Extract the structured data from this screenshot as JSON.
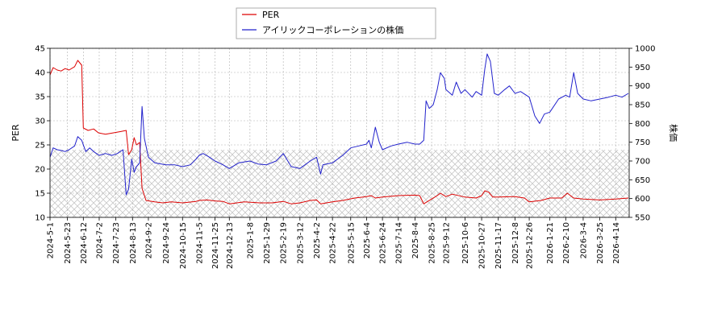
{
  "chart_data": {
    "type": "line",
    "title": "",
    "xlabel": "",
    "ylabel_left": "PER",
    "ylabel_right": "株価",
    "ylim_left": [
      10,
      45
    ],
    "ylim_right": [
      550,
      1000
    ],
    "yticks_left": [
      10,
      15,
      20,
      25,
      30,
      35,
      40,
      45
    ],
    "yticks_right": [
      550,
      600,
      650,
      700,
      750,
      800,
      850,
      900,
      950,
      1000
    ],
    "xlim": [
      "2024-05-01",
      "2026-05-01"
    ],
    "xticks": [
      "2024-5-1",
      "2024-5-23",
      "2024-6-12",
      "2024-7-2",
      "2024-7-23",
      "2024-8-13",
      "2024-9-2",
      "2024-9-24",
      "2024-10-15",
      "2024-11-5",
      "2024-11-25",
      "2024-12-13",
      "2025-1-8",
      "2025-1-29",
      "2025-2-19",
      "2025-3-12",
      "2025-4-2",
      "2025-4-22",
      "2025-5-15",
      "2025-6-4",
      "2025-6-24",
      "2025-7-14",
      "2025-8-4",
      "2025-8-25",
      "2025-9-12",
      "2025-10-6",
      "2025-10-27",
      "2025-11-17",
      "2025-12-8",
      "2025-12-26",
      "2026-1-21",
      "2026-2-10",
      "2026-3-4",
      "2026-3-25",
      "2026-4-14"
    ],
    "grid": true,
    "legend_position": "top-center",
    "hatched_band_left": [
      10,
      24
    ],
    "colors": {
      "per": "#dd0000",
      "price": "#2222cc",
      "grid": "#b0b0b0",
      "hatch": "#c8c8c8"
    },
    "series": [
      {
        "name": "PER",
        "axis": "left",
        "points": [
          [
            "2024-05-01",
            39.5
          ],
          [
            "2024-05-05",
            41.0
          ],
          [
            "2024-05-10",
            40.5
          ],
          [
            "2024-05-15",
            40.3
          ],
          [
            "2024-05-20",
            40.8
          ],
          [
            "2024-05-25",
            40.5
          ],
          [
            "2024-06-01",
            41.2
          ],
          [
            "2024-06-05",
            42.5
          ],
          [
            "2024-06-10",
            41.5
          ],
          [
            "2024-06-12",
            28.5
          ],
          [
            "2024-06-18",
            28.0
          ],
          [
            "2024-06-25",
            28.3
          ],
          [
            "2024-07-01",
            27.5
          ],
          [
            "2024-07-10",
            27.2
          ],
          [
            "2024-07-20",
            27.5
          ],
          [
            "2024-07-30",
            27.8
          ],
          [
            "2024-08-05",
            28.0
          ],
          [
            "2024-08-08",
            23.0
          ],
          [
            "2024-08-12",
            24.0
          ],
          [
            "2024-08-15",
            26.5
          ],
          [
            "2024-08-18",
            25.0
          ],
          [
            "2024-08-22",
            25.5
          ],
          [
            "2024-08-25",
            16.0
          ],
          [
            "2024-08-30",
            13.5
          ],
          [
            "2024-09-10",
            13.2
          ],
          [
            "2024-09-20",
            13.0
          ],
          [
            "2024-10-01",
            13.2
          ],
          [
            "2024-10-15",
            13.0
          ],
          [
            "2024-11-01",
            13.3
          ],
          [
            "2024-11-05",
            13.5
          ],
          [
            "2024-11-15",
            13.6
          ],
          [
            "2024-11-25",
            13.4
          ],
          [
            "2024-12-05",
            13.3
          ],
          [
            "2024-12-13",
            12.8
          ],
          [
            "2025-01-01",
            13.2
          ],
          [
            "2025-01-20",
            13.0
          ],
          [
            "2025-02-05",
            13.0
          ],
          [
            "2025-02-19",
            13.3
          ],
          [
            "2025-03-01",
            12.8
          ],
          [
            "2025-03-12",
            13.0
          ],
          [
            "2025-03-25",
            13.5
          ],
          [
            "2025-04-02",
            13.6
          ],
          [
            "2025-04-07",
            12.8
          ],
          [
            "2025-04-22",
            13.2
          ],
          [
            "2025-05-05",
            13.5
          ],
          [
            "2025-05-20",
            14.0
          ],
          [
            "2025-06-04",
            14.3
          ],
          [
            "2025-06-10",
            14.5
          ],
          [
            "2025-06-15",
            14.0
          ],
          [
            "2025-06-24",
            14.2
          ],
          [
            "2025-07-14",
            14.5
          ],
          [
            "2025-08-04",
            14.6
          ],
          [
            "2025-08-10",
            14.5
          ],
          [
            "2025-08-15",
            12.8
          ],
          [
            "2025-08-25",
            13.8
          ],
          [
            "2025-09-01",
            14.5
          ],
          [
            "2025-09-05",
            15.0
          ],
          [
            "2025-09-12",
            14.3
          ],
          [
            "2025-09-20",
            14.8
          ],
          [
            "2025-10-06",
            14.2
          ],
          [
            "2025-10-20",
            14.0
          ],
          [
            "2025-10-27",
            14.5
          ],
          [
            "2025-10-31",
            15.5
          ],
          [
            "2025-11-05",
            15.2
          ],
          [
            "2025-11-10",
            14.2
          ],
          [
            "2025-11-17",
            14.2
          ],
          [
            "2025-12-08",
            14.3
          ],
          [
            "2025-12-20",
            14.0
          ],
          [
            "2025-12-26",
            13.2
          ],
          [
            "2026-01-10",
            13.5
          ],
          [
            "2026-01-21",
            14.0
          ],
          [
            "2026-02-05",
            14.0
          ],
          [
            "2026-02-12",
            15.0
          ],
          [
            "2026-02-20",
            14.0
          ],
          [
            "2026-03-04",
            13.8
          ],
          [
            "2026-03-25",
            13.6
          ],
          [
            "2026-04-14",
            13.8
          ],
          [
            "2026-04-30",
            14.0
          ]
        ]
      },
      {
        "name": "アイリックコーポレーションの株価",
        "axis": "right",
        "points": [
          [
            "2024-05-01",
            710
          ],
          [
            "2024-05-05",
            735
          ],
          [
            "2024-05-10",
            730
          ],
          [
            "2024-05-15",
            728
          ],
          [
            "2024-05-20",
            725
          ],
          [
            "2024-05-25",
            730
          ],
          [
            "2024-06-01",
            740
          ],
          [
            "2024-06-05",
            765
          ],
          [
            "2024-06-10",
            755
          ],
          [
            "2024-06-15",
            725
          ],
          [
            "2024-06-20",
            735
          ],
          [
            "2024-06-25",
            725
          ],
          [
            "2024-07-02",
            715
          ],
          [
            "2024-07-10",
            720
          ],
          [
            "2024-07-18",
            715
          ],
          [
            "2024-07-25",
            720
          ],
          [
            "2024-08-01",
            730
          ],
          [
            "2024-08-05",
            610
          ],
          [
            "2024-08-08",
            625
          ],
          [
            "2024-08-12",
            705
          ],
          [
            "2024-08-15",
            670
          ],
          [
            "2024-08-18",
            685
          ],
          [
            "2024-08-22",
            695
          ],
          [
            "2024-08-25",
            845
          ],
          [
            "2024-08-28",
            760
          ],
          [
            "2024-09-02",
            710
          ],
          [
            "2024-09-10",
            695
          ],
          [
            "2024-09-24",
            690
          ],
          [
            "2024-10-05",
            690
          ],
          [
            "2024-10-15",
            685
          ],
          [
            "2024-10-25",
            690
          ],
          [
            "2024-11-01",
            705
          ],
          [
            "2024-11-05",
            715
          ],
          [
            "2024-11-10",
            720
          ],
          [
            "2024-11-18",
            710
          ],
          [
            "2024-11-25",
            700
          ],
          [
            "2024-12-05",
            690
          ],
          [
            "2024-12-13",
            680
          ],
          [
            "2024-12-25",
            695
          ],
          [
            "2025-01-08",
            700
          ],
          [
            "2025-01-18",
            692
          ],
          [
            "2025-01-29",
            690
          ],
          [
            "2025-02-10",
            700
          ],
          [
            "2025-02-19",
            720
          ],
          [
            "2025-03-01",
            685
          ],
          [
            "2025-03-12",
            680
          ],
          [
            "2025-03-25",
            700
          ],
          [
            "2025-04-02",
            710
          ],
          [
            "2025-04-07",
            665
          ],
          [
            "2025-04-10",
            690
          ],
          [
            "2025-04-22",
            695
          ],
          [
            "2025-05-05",
            715
          ],
          [
            "2025-05-15",
            735
          ],
          [
            "2025-05-25",
            740
          ],
          [
            "2025-06-04",
            745
          ],
          [
            "2025-06-07",
            755
          ],
          [
            "2025-06-10",
            735
          ],
          [
            "2025-06-15",
            790
          ],
          [
            "2025-06-20",
            750
          ],
          [
            "2025-06-24",
            730
          ],
          [
            "2025-07-05",
            740
          ],
          [
            "2025-07-14",
            745
          ],
          [
            "2025-07-25",
            750
          ],
          [
            "2025-08-04",
            745
          ],
          [
            "2025-08-10",
            745
          ],
          [
            "2025-08-15",
            755
          ],
          [
            "2025-08-18",
            860
          ],
          [
            "2025-08-22",
            840
          ],
          [
            "2025-08-27",
            850
          ],
          [
            "2025-09-01",
            890
          ],
          [
            "2025-09-05",
            935
          ],
          [
            "2025-09-10",
            920
          ],
          [
            "2025-09-12",
            890
          ],
          [
            "2025-09-20",
            875
          ],
          [
            "2025-09-25",
            910
          ],
          [
            "2025-10-01",
            880
          ],
          [
            "2025-10-06",
            890
          ],
          [
            "2025-10-15",
            870
          ],
          [
            "2025-10-20",
            885
          ],
          [
            "2025-10-27",
            875
          ],
          [
            "2025-10-31",
            945
          ],
          [
            "2025-11-03",
            985
          ],
          [
            "2025-11-07",
            965
          ],
          [
            "2025-11-12",
            880
          ],
          [
            "2025-11-17",
            875
          ],
          [
            "2025-11-25",
            890
          ],
          [
            "2025-12-01",
            900
          ],
          [
            "2025-12-08",
            880
          ],
          [
            "2025-12-15",
            885
          ],
          [
            "2025-12-26",
            870
          ],
          [
            "2026-01-02",
            820
          ],
          [
            "2026-01-08",
            800
          ],
          [
            "2026-01-14",
            825
          ],
          [
            "2026-01-21",
            830
          ],
          [
            "2026-02-01",
            865
          ],
          [
            "2026-02-10",
            875
          ],
          [
            "2026-02-15",
            870
          ],
          [
            "2026-02-20",
            935
          ],
          [
            "2026-02-25",
            880
          ],
          [
            "2026-03-04",
            865
          ],
          [
            "2026-03-14",
            860
          ],
          [
            "2026-03-25",
            865
          ],
          [
            "2026-04-05",
            870
          ],
          [
            "2026-04-14",
            875
          ],
          [
            "2026-04-22",
            870
          ],
          [
            "2026-04-30",
            880
          ]
        ]
      }
    ]
  }
}
